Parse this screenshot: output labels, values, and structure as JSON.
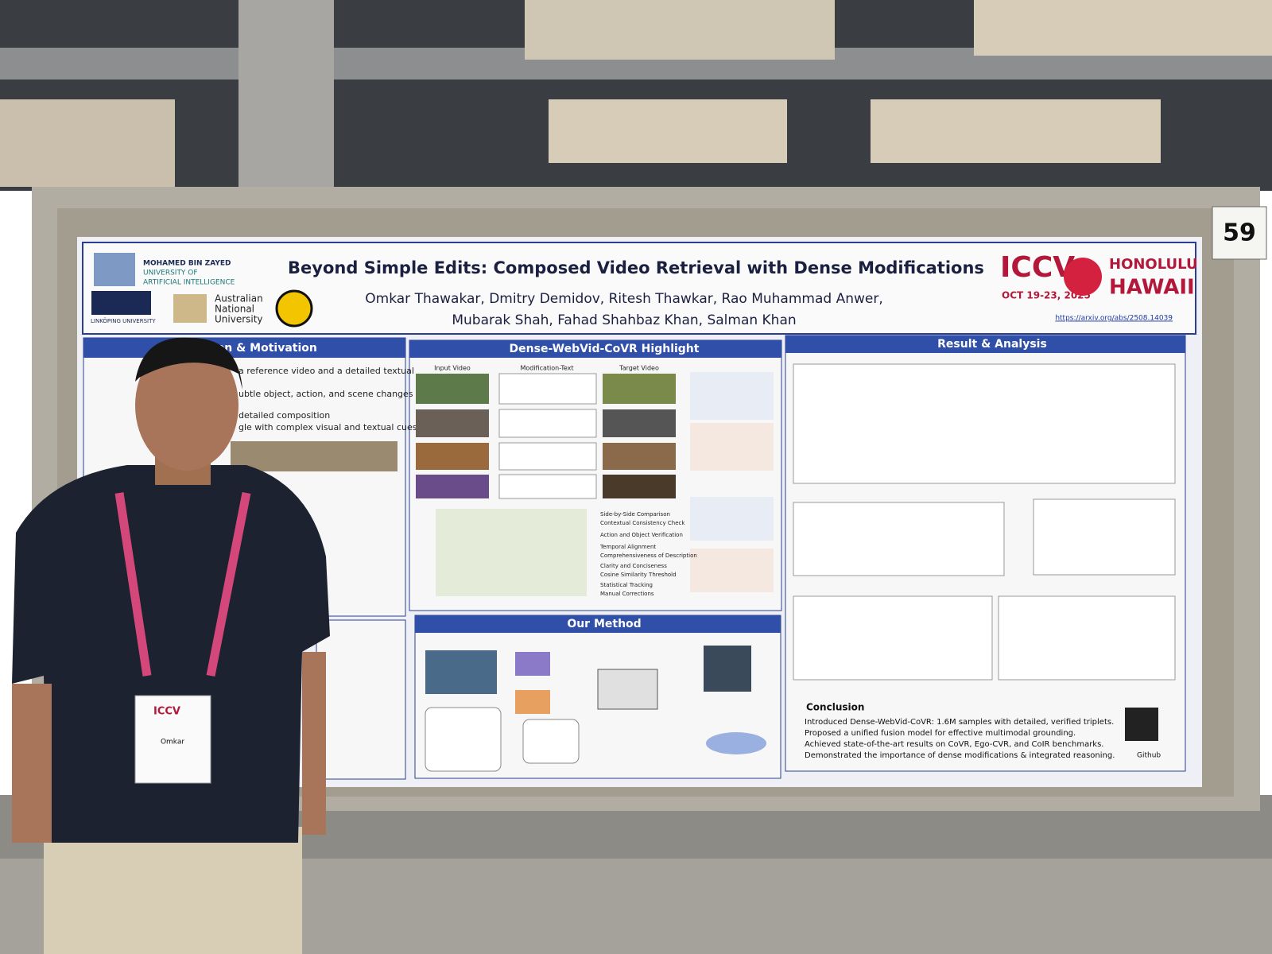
{
  "booth_number": "59",
  "poster": {
    "title": "Beyond Simple Edits: Composed Video Retrieval with Dense Modifications",
    "authors": [
      "Omkar Thawakar, Dmitry Demidov, Ritesh Thawkar, Rao Muhammad Anwer,",
      "Mubarak Shah, Fahad Shahbaz Khan, Salman Khan"
    ],
    "affiliations": [
      "MOHAMED BIN ZAYED",
      "UNIVERSITY OF",
      "ARTIFICIAL INTELLIGENCE",
      "LINKÖPING UNIVERSITY",
      "Australian",
      "National",
      "University"
    ],
    "conference": {
      "name": "ICCV",
      "dates": "OCT 19-23, 2025",
      "city": "HONOLULU",
      "state": "HAWAII"
    },
    "arxiv": "https://arxiv.org/abs/2508.14039",
    "sections": [
      "tion & Motivation",
      "Dense-WebVid-CoVR Highlight",
      "Result & Analysis",
      "Our Method",
      "Conclusion"
    ],
    "intro_fragments": [
      "a reference video and a detailed textual",
      "ubtle object, action, and scene changes",
      "detailed composition",
      "gle with complex visual and textual cues"
    ],
    "highlight_columns": [
      "Input Video",
      "Modification-Text",
      "Target Video"
    ],
    "verification_steps": [
      "Side-by-Side Comparison",
      "Contextual Consistency Check",
      "Action and Object Verification",
      "Temporal Alignment",
      "Comprehensiveness of Description",
      "Clarity and Conciseness",
      "Cosine Similarity Threshold",
      "Statistical Tracking",
      "Manual Corrections"
    ],
    "conclusion": [
      "Introduced Dense-WebVid-CoVR: 1.6M samples with detailed, verified triplets.",
      "Proposed a unified fusion model for effective multimodal grounding.",
      "Achieved state-of-the-art results on CoVR, Ego-CVR, and CoIR benchmarks.",
      "Demonstrated the importance of dense modifications & integrated reasoning."
    ],
    "github": "Github"
  },
  "badge": {
    "name": "Omkar",
    "conference": "ICCV"
  }
}
